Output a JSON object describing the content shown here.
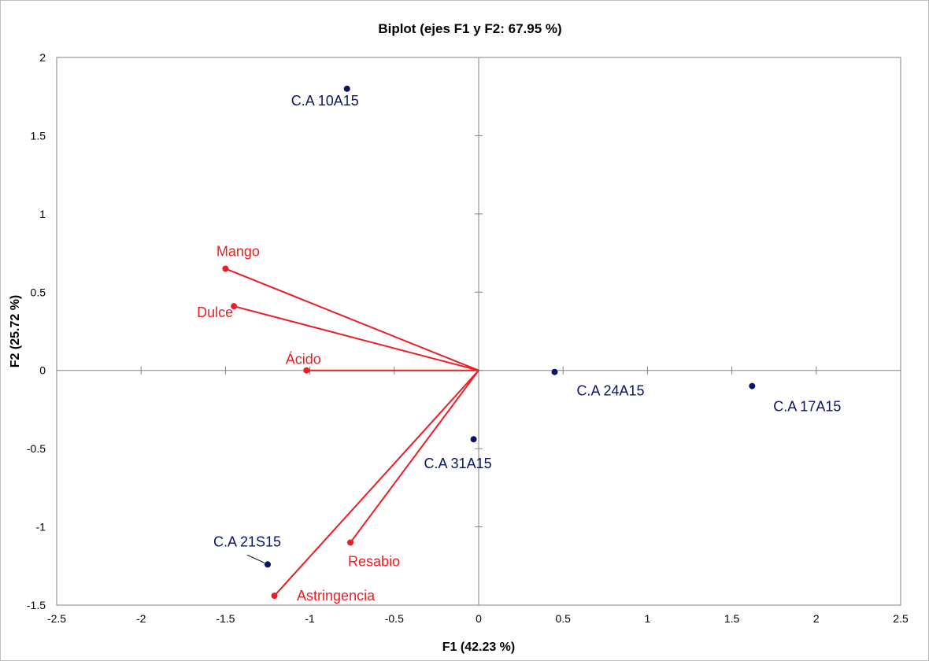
{
  "chart_data": {
    "type": "scatter",
    "title": "Biplot (ejes F1 y F2: 67.95 %)",
    "xlabel": "F1 (42.23 %)",
    "ylabel": "F2 (25.72 %)",
    "xlim": [
      -2.5,
      2.5
    ],
    "ylim": [
      -1.5,
      2
    ],
    "xticks": [
      "-2.5",
      "-2",
      "-1.5",
      "-1",
      "-0.5",
      "0",
      "0.5",
      "1",
      "1.5",
      "2",
      "2.5"
    ],
    "yticks": [
      "-1.5",
      "-1",
      "-0.5",
      "0",
      "0.5",
      "1",
      "1.5",
      "2"
    ],
    "grid": false,
    "observations": {
      "color": "#0b1464",
      "points": [
        {
          "label": "C.A 10A15",
          "x": -0.78,
          "y": 1.8
        },
        {
          "label": "C.A 24A15",
          "x": 0.45,
          "y": -0.01
        },
        {
          "label": "C.A 17A15",
          "x": 1.62,
          "y": -0.1
        },
        {
          "label": "C.A 31A15",
          "x": -0.03,
          "y": -0.44
        },
        {
          "label": "C.A 21S15",
          "x": -1.25,
          "y": -1.24
        }
      ]
    },
    "variables": {
      "color": "#ee1c24",
      "vectors": [
        {
          "label": "Mango",
          "x": -1.5,
          "y": 0.65
        },
        {
          "label": "Dulce",
          "x": -1.45,
          "y": 0.41
        },
        {
          "label": "Ácido",
          "x": -1.02,
          "y": 0.0
        },
        {
          "label": "Resabio",
          "x": -0.76,
          "y": -1.1
        },
        {
          "label": "Astringencia",
          "x": -1.21,
          "y": -1.44
        }
      ]
    }
  }
}
